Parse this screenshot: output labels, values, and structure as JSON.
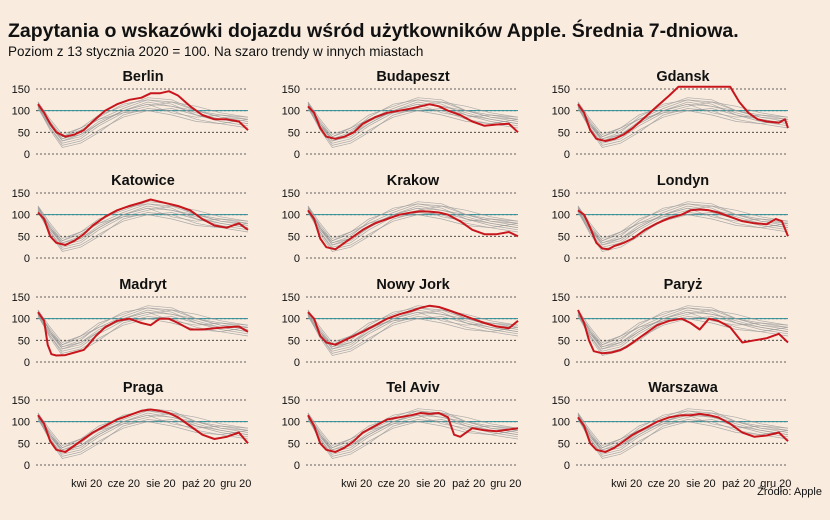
{
  "title": "Zapytania o wskazówki dojazdu wśród użytkowników Apple. Średnia 7-dniowa.",
  "subtitle": "Poziom z 13 stycznia 2020 = 100. Na szaro trendy w innych miastach",
  "source": "Źródło: Apple",
  "colors": {
    "highlight": "#c8161d",
    "other": "#9a9a9a",
    "reference": "#2a8f9a",
    "grid": "#333333"
  },
  "chart_data": {
    "type": "line",
    "layout": "small-multiples",
    "xlabel": "",
    "ylabel": "",
    "ylim": [
      0,
      150
    ],
    "yticks": [
      0,
      50,
      100,
      150
    ],
    "reference_line": 100,
    "xticks": [
      {
        "label": "kwi 20",
        "x": 80
      },
      {
        "label": "cze 20",
        "x": 141
      },
      {
        "label": "sie 20",
        "x": 202
      },
      {
        "label": "paź 20",
        "x": 264
      },
      {
        "label": "gru 20",
        "x": 325
      }
    ],
    "panels": [
      {
        "name": "Berlin",
        "x": [
          0,
          10,
          20,
          30,
          45,
          60,
          75,
          90,
          110,
          130,
          150,
          170,
          185,
          200,
          215,
          230,
          250,
          270,
          290,
          310,
          330,
          345
        ],
        "y": [
          115,
          95,
          70,
          50,
          40,
          45,
          55,
          75,
          100,
          115,
          125,
          130,
          140,
          140,
          145,
          135,
          110,
          90,
          80,
          80,
          75,
          55
        ]
      },
      {
        "name": "Budapeszt",
        "x": [
          0,
          10,
          20,
          30,
          45,
          60,
          75,
          90,
          110,
          130,
          150,
          170,
          185,
          200,
          215,
          230,
          250,
          270,
          290,
          310,
          330,
          345
        ],
        "y": [
          110,
          95,
          60,
          40,
          35,
          40,
          50,
          70,
          85,
          95,
          100,
          105,
          110,
          115,
          110,
          100,
          90,
          75,
          65,
          68,
          70,
          50
        ]
      },
      {
        "name": "Gdansk",
        "x": [
          0,
          10,
          20,
          30,
          45,
          60,
          75,
          90,
          110,
          130,
          150,
          165,
          250,
          265,
          280,
          295,
          310,
          330,
          340,
          345
        ],
        "y": [
          115,
          95,
          55,
          35,
          30,
          35,
          45,
          60,
          85,
          110,
          135,
          155,
          155,
          120,
          95,
          80,
          75,
          72,
          80,
          60
        ]
      },
      {
        "name": "Katowice",
        "x": [
          0,
          10,
          20,
          30,
          45,
          60,
          75,
          90,
          110,
          130,
          150,
          170,
          185,
          200,
          215,
          230,
          250,
          270,
          290,
          310,
          330,
          345
        ],
        "y": [
          105,
          90,
          50,
          35,
          30,
          40,
          55,
          75,
          95,
          110,
          120,
          128,
          135,
          130,
          125,
          120,
          110,
          90,
          75,
          70,
          80,
          65
        ]
      },
      {
        "name": "Krakow",
        "x": [
          0,
          10,
          20,
          30,
          45,
          60,
          75,
          90,
          110,
          130,
          150,
          170,
          185,
          200,
          215,
          230,
          250,
          270,
          290,
          310,
          330,
          345
        ],
        "y": [
          110,
          90,
          45,
          25,
          20,
          35,
          50,
          65,
          80,
          90,
          100,
          105,
          108,
          107,
          105,
          100,
          85,
          65,
          55,
          55,
          60,
          50
        ]
      },
      {
        "name": "Londyn",
        "x": [
          0,
          10,
          20,
          30,
          40,
          50,
          60,
          75,
          90,
          110,
          130,
          150,
          170,
          185,
          200,
          215,
          230,
          250,
          270,
          290,
          310,
          325,
          335,
          345
        ],
        "y": [
          110,
          100,
          70,
          35,
          22,
          20,
          28,
          35,
          45,
          65,
          80,
          92,
          100,
          110,
          112,
          110,
          105,
          95,
          85,
          80,
          78,
          90,
          85,
          50
        ]
      },
      {
        "name": "Madryt",
        "x": [
          0,
          10,
          16,
          22,
          30,
          45,
          60,
          75,
          80,
          95,
          110,
          130,
          150,
          170,
          185,
          200,
          215,
          230,
          250,
          270,
          290,
          310,
          330,
          345
        ],
        "y": [
          115,
          95,
          40,
          18,
          15,
          16,
          22,
          28,
          35,
          60,
          80,
          95,
          100,
          90,
          85,
          100,
          100,
          90,
          75,
          75,
          78,
          80,
          82,
          70
        ]
      },
      {
        "name": "Nowy Jork",
        "x": [
          0,
          10,
          20,
          30,
          45,
          60,
          75,
          90,
          110,
          130,
          150,
          170,
          185,
          200,
          215,
          230,
          250,
          270,
          290,
          310,
          330,
          345
        ],
        "y": [
          115,
          100,
          60,
          45,
          40,
          50,
          60,
          70,
          85,
          100,
          110,
          118,
          125,
          130,
          127,
          120,
          110,
          100,
          90,
          82,
          78,
          95
        ]
      },
      {
        "name": "Paryż",
        "x": [
          0,
          10,
          18,
          26,
          40,
          55,
          70,
          80,
          90,
          110,
          130,
          150,
          170,
          185,
          200,
          215,
          230,
          250,
          270,
          290,
          310,
          330,
          345
        ],
        "y": [
          120,
          90,
          50,
          25,
          20,
          22,
          28,
          35,
          45,
          65,
          85,
          95,
          100,
          90,
          75,
          100,
          95,
          80,
          45,
          50,
          55,
          65,
          45
        ]
      },
      {
        "name": "Praga",
        "x": [
          0,
          10,
          20,
          30,
          45,
          60,
          75,
          90,
          110,
          130,
          150,
          170,
          185,
          200,
          215,
          230,
          250,
          270,
          290,
          310,
          330,
          345
        ],
        "y": [
          115,
          95,
          55,
          35,
          30,
          45,
          60,
          75,
          90,
          105,
          115,
          125,
          128,
          125,
          120,
          110,
          90,
          70,
          60,
          65,
          75,
          50
        ]
      },
      {
        "name": "Tel Aviv",
        "x": [
          0,
          10,
          20,
          30,
          45,
          60,
          75,
          90,
          110,
          130,
          150,
          170,
          185,
          200,
          215,
          230,
          240,
          250,
          270,
          290,
          310,
          330,
          345
        ],
        "y": [
          115,
          90,
          50,
          35,
          30,
          40,
          55,
          75,
          90,
          105,
          110,
          115,
          120,
          118,
          120,
          110,
          70,
          65,
          85,
          80,
          78,
          82,
          85
        ]
      },
      {
        "name": "Warszawa",
        "x": [
          0,
          10,
          20,
          30,
          45,
          60,
          75,
          90,
          110,
          130,
          150,
          170,
          185,
          200,
          215,
          230,
          250,
          270,
          290,
          310,
          330,
          345
        ],
        "y": [
          110,
          90,
          50,
          35,
          30,
          40,
          55,
          70,
          85,
          100,
          110,
          115,
          115,
          118,
          115,
          110,
          95,
          75,
          65,
          68,
          75,
          55
        ]
      }
    ],
    "gray_series": [
      {
        "x": [
          0,
          20,
          40,
          70,
          100,
          140,
          180,
          220,
          260,
          300,
          345
        ],
        "y": [
          120,
          70,
          30,
          40,
          70,
          100,
          120,
          110,
          95,
          80,
          70
        ]
      },
      {
        "x": [
          0,
          20,
          40,
          70,
          100,
          140,
          180,
          220,
          260,
          300,
          345
        ],
        "y": [
          110,
          60,
          25,
          35,
          65,
          95,
          110,
          120,
          100,
          85,
          75
        ]
      },
      {
        "x": [
          0,
          20,
          40,
          70,
          100,
          140,
          180,
          220,
          260,
          300,
          345
        ],
        "y": [
          115,
          75,
          40,
          55,
          80,
          105,
          125,
          115,
          90,
          75,
          65
        ]
      },
      {
        "x": [
          0,
          20,
          40,
          70,
          100,
          140,
          180,
          220,
          260,
          300,
          345
        ],
        "y": [
          105,
          60,
          20,
          30,
          55,
          85,
          100,
          105,
          90,
          80,
          70
        ]
      },
      {
        "x": [
          0,
          20,
          40,
          70,
          100,
          140,
          180,
          220,
          260,
          300,
          345
        ],
        "y": [
          120,
          80,
          45,
          60,
          90,
          110,
          130,
          125,
          100,
          85,
          80
        ]
      },
      {
        "x": [
          0,
          20,
          40,
          70,
          100,
          140,
          180,
          220,
          260,
          300,
          345
        ],
        "y": [
          112,
          65,
          30,
          45,
          75,
          100,
          115,
          95,
          85,
          90,
          85
        ]
      },
      {
        "x": [
          0,
          20,
          40,
          70,
          100,
          140,
          180,
          220,
          260,
          300,
          345
        ],
        "y": [
          118,
          70,
          35,
          50,
          85,
          115,
          125,
          120,
          110,
          95,
          85
        ]
      },
      {
        "x": [
          0,
          20,
          40,
          70,
          100,
          140,
          180,
          220,
          260,
          300,
          345
        ],
        "y": [
          108,
          55,
          15,
          25,
          50,
          90,
          105,
          100,
          80,
          70,
          60
        ]
      },
      {
        "x": [
          0,
          20,
          40,
          70,
          100,
          140,
          180,
          220,
          260,
          300,
          345
        ],
        "y": [
          115,
          70,
          40,
          60,
          80,
          95,
          100,
          90,
          75,
          70,
          80
        ]
      },
      {
        "x": [
          0,
          20,
          40,
          70,
          100,
          140,
          180,
          220,
          260,
          300,
          345
        ],
        "y": [
          110,
          65,
          35,
          45,
          70,
          100,
          115,
          110,
          100,
          90,
          80
        ]
      }
    ]
  }
}
